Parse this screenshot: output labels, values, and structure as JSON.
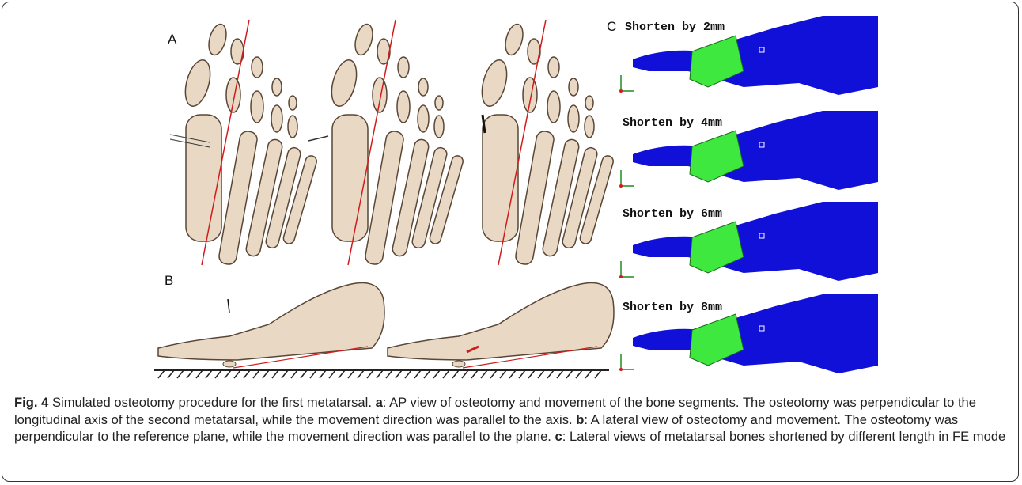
{
  "figure": {
    "panels": {
      "a": {
        "label": "A"
      },
      "b": {
        "label": "B"
      },
      "c": {
        "label": "C",
        "views": [
          "Shorten by 2mm",
          "Shorten by 4mm",
          "Shorten by 6mm",
          "Shorten by 8mm"
        ]
      }
    },
    "caption": {
      "title": "Fig. 4",
      "text": "Simulated osteotomy procedure for the first metatarsal.",
      "items": [
        {
          "label": "a",
          "text": ": AP view of osteotomy and movement of the bone segments. The osteotomy was perpendicular to the longitudinal axis of the second metatarsal, while the movement direction was parallel to the axis."
        },
        {
          "label": "b",
          "text": ": A lateral view of osteotomy and movement. The osteotomy was perpendicular to the reference plane, while the movement direction was parallel to the plane."
        },
        {
          "label": "c",
          "text": ": Lateral views of metatarsal bones shortened by different length in FE mode"
        }
      ]
    }
  }
}
